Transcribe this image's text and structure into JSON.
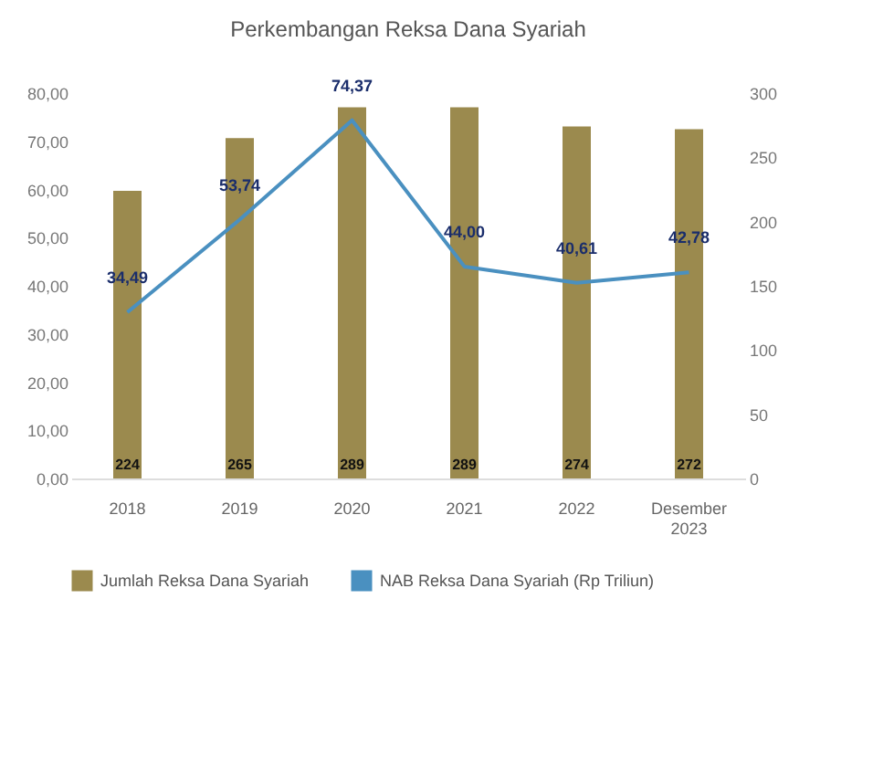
{
  "chart_data": {
    "type": "bar",
    "title": "Perkembangan Reksa Dana Syariah",
    "categories": [
      "2018",
      "2019",
      "2020",
      "2021",
      "2022",
      "Desember 2023"
    ],
    "series": [
      {
        "name": "Jumlah Reksa Dana Syariah",
        "axis": "y2",
        "color": "#9b8a4e",
        "values": [
          224,
          265,
          289,
          289,
          274,
          272
        ]
      },
      {
        "name": "NAB Reksa Dana Syariah (Rp Triliun)",
        "type": "line",
        "color": "#4a90c0",
        "values": [
          34.49,
          53.74,
          74.37,
          44.0,
          40.61,
          42.78
        ],
        "value_labels": [
          "34,49",
          "53,74",
          "74,37",
          "44,00",
          "40,61",
          "42,78"
        ]
      }
    ],
    "data_labels": true,
    "ylim": [
      0,
      80
    ],
    "yticks": [
      {
        "value": 0,
        "label": "0,00"
      },
      {
        "value": 10,
        "label": "10,00"
      },
      {
        "value": 20,
        "label": "20,00"
      },
      {
        "value": 30,
        "label": "30,00"
      },
      {
        "value": 40,
        "label": "40,00"
      },
      {
        "value": 50,
        "label": "50,00"
      },
      {
        "value": 60,
        "label": "60,00"
      },
      {
        "value": 70,
        "label": "70,00"
      },
      {
        "value": 80,
        "label": "80,00"
      }
    ],
    "y2lim": [
      0,
      300
    ],
    "y2ticks": [
      0,
      50,
      100,
      150,
      200,
      250,
      300
    ],
    "grid": false,
    "legend": "bottom"
  }
}
